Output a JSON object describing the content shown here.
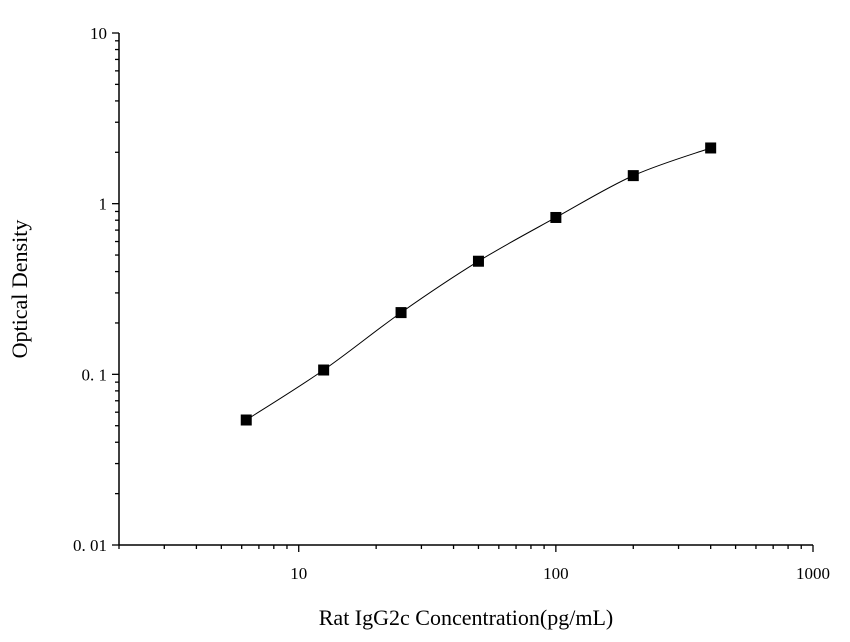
{
  "chart_data": {
    "type": "scatter",
    "xlabel": "Rat IgG2c Concentration(pg/mL)",
    "ylabel": "Optical Density",
    "x_scale": "log",
    "y_scale": "log",
    "xlim": [
      2,
      1000
    ],
    "ylim": [
      0.01,
      10
    ],
    "x_tick_labels": [
      "10",
      "100",
      "1000"
    ],
    "y_tick_labels": [
      "0. 01",
      "0. 1",
      "1",
      "10"
    ],
    "grid": false,
    "legend": "none",
    "marker": "square",
    "fit_line": true,
    "series": [
      {
        "x": [
          6.25,
          12.5,
          25,
          50,
          100,
          200,
          400
        ],
        "y": [
          0.054,
          0.106,
          0.23,
          0.46,
          0.83,
          1.46,
          2.12
        ]
      }
    ]
  }
}
